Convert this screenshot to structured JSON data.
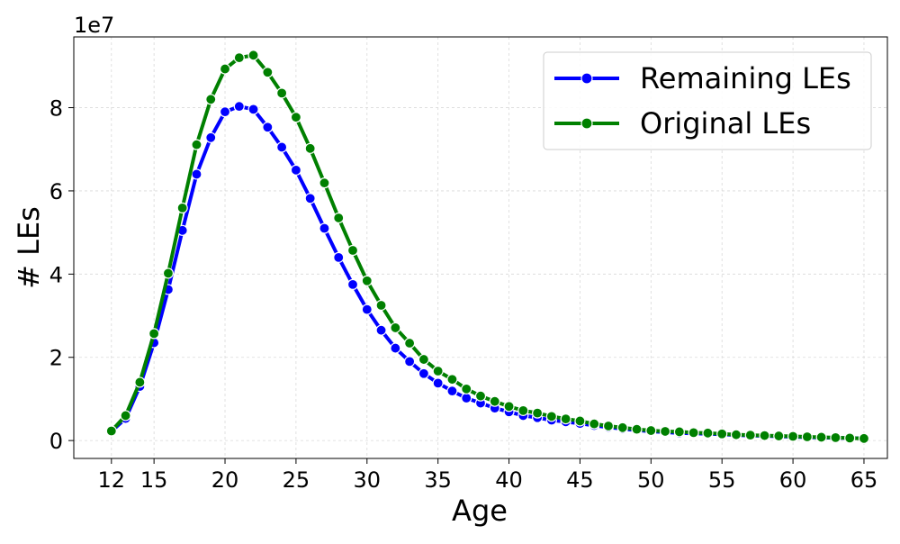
{
  "chart_data": {
    "type": "line",
    "title": "",
    "xlabel": "Age",
    "ylabel": "# LEs",
    "y_offset_label": "1e7",
    "xlim": [
      9.35,
      66.65
    ],
    "ylim": [
      -4300000,
      97000000
    ],
    "x_ticks": [
      12,
      15,
      20,
      25,
      30,
      35,
      40,
      45,
      50,
      55,
      60,
      65
    ],
    "x_tick_labels": [
      "12",
      "15",
      "20",
      "25",
      "30",
      "35",
      "40",
      "45",
      "50",
      "55",
      "60",
      "65"
    ],
    "y_ticks": [
      0,
      20000000,
      40000000,
      60000000,
      80000000
    ],
    "y_tick_labels": [
      "0",
      "2",
      "4",
      "6",
      "8"
    ],
    "grid": true,
    "legend_position": "top-right",
    "x": [
      12,
      13,
      14,
      15,
      16,
      17,
      18,
      19,
      20,
      21,
      22,
      23,
      24,
      25,
      26,
      27,
      28,
      29,
      30,
      31,
      32,
      33,
      34,
      35,
      36,
      37,
      38,
      39,
      40,
      41,
      42,
      43,
      44,
      45,
      46,
      47,
      48,
      49,
      50,
      51,
      52,
      53,
      54,
      55,
      56,
      57,
      58,
      59,
      60,
      61,
      62,
      63,
      64,
      65
    ],
    "series": [
      {
        "name": "Remaining LEs",
        "color": "#0000ff",
        "values": [
          2200000,
          5300000,
          13000000,
          23500000,
          36300000,
          50500000,
          64000000,
          72800000,
          79000000,
          80300000,
          79600000,
          75300000,
          70500000,
          65000000,
          58200000,
          51000000,
          44000000,
          37500000,
          31500000,
          26500000,
          22200000,
          19000000,
          16100000,
          13800000,
          11900000,
          10200000,
          9000000,
          7800000,
          6900000,
          6000000,
          5500000,
          4900000,
          4500000,
          4100000,
          3600000,
          3200000,
          2800000,
          2500000,
          2200000,
          2000000,
          1800000,
          1700000,
          1600000,
          1500000,
          1300000,
          1200000,
          1100000,
          1000000,
          900000,
          800000,
          700000,
          650000,
          600000,
          550000
        ]
      },
      {
        "name": "Original LEs",
        "color": "#008000",
        "values": [
          2300000,
          6000000,
          14000000,
          25700000,
          40200000,
          55900000,
          71100000,
          82000000,
          89300000,
          92000000,
          92600000,
          88500000,
          83500000,
          77700000,
          70200000,
          61900000,
          53500000,
          45700000,
          38400000,
          32500000,
          27100000,
          23400000,
          19500000,
          16700000,
          14700000,
          12400000,
          10700000,
          9400000,
          8200000,
          7200000,
          6600000,
          5800000,
          5200000,
          4700000,
          4000000,
          3500000,
          3100000,
          2700000,
          2400000,
          2200000,
          2100000,
          1900000,
          1800000,
          1600000,
          1400000,
          1300000,
          1200000,
          1100000,
          1000000,
          900000,
          800000,
          700000,
          600000,
          500000
        ]
      }
    ]
  }
}
